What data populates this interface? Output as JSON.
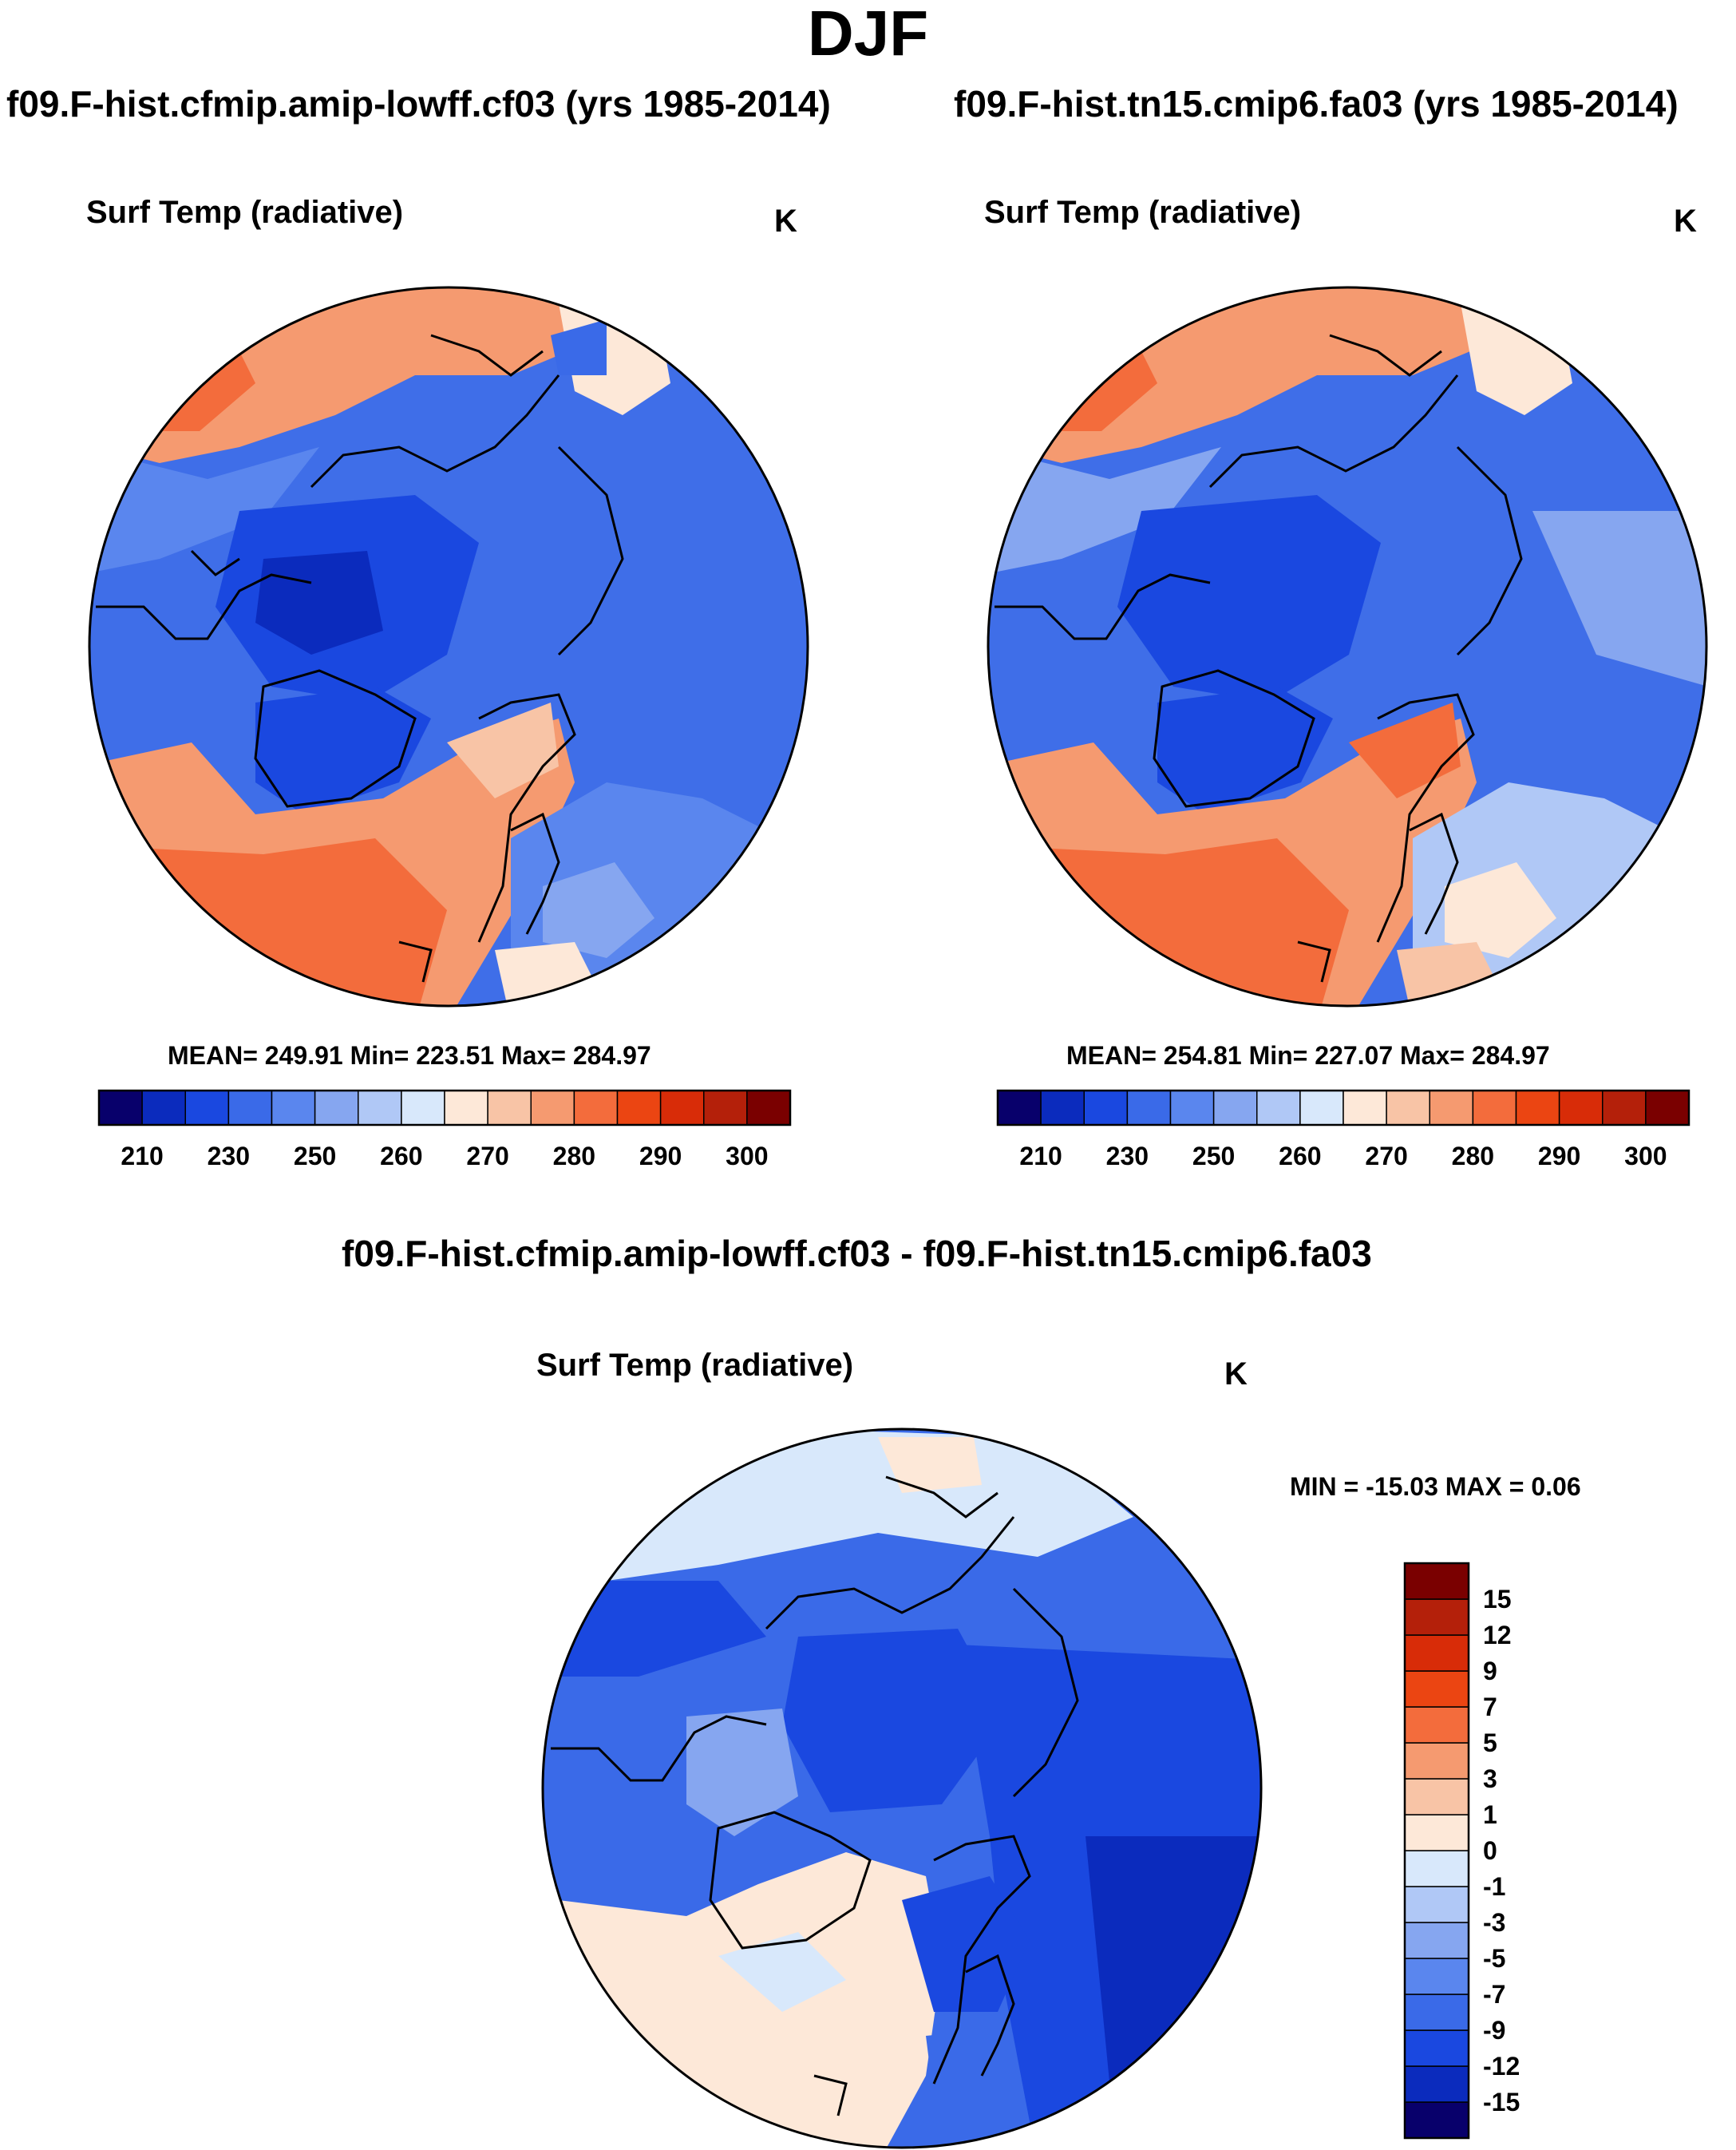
{
  "title": "DJF",
  "panels": [
    {
      "model_title": "f09.F-hist.cfmip.amip-lowff.cf03 (yrs 1985-2014)",
      "variable": "Surf Temp (radiative)",
      "units": "K",
      "stats": "MEAN= 249.91  Min= 223.51  Max= 284.97"
    },
    {
      "model_title": "f09.F-hist.tn15.cmip6.fa03 (yrs 1985-2014)",
      "variable": "Surf Temp (radiative)",
      "units": "K",
      "stats": "MEAN= 254.81  Min= 227.07  Max= 284.97"
    },
    {
      "model_title": "f09.F-hist.cfmip.amip-lowff.cf03 - f09.F-hist.tn15.cmip6.fa03",
      "variable": "Surf Temp (radiative)",
      "units": "K",
      "stats": "MIN = -15.03 MAX =   0.06"
    }
  ],
  "colorbar_abs": {
    "colors": [
      "#08006b",
      "#0b2bbd",
      "#1a48e0",
      "#3a6ae8",
      "#5a86ee",
      "#86a6f0",
      "#b0c8f6",
      "#d8e8fb",
      "#fde8d8",
      "#f8c4a6",
      "#f59a70",
      "#f36c3c",
      "#eb4512",
      "#d82c08",
      "#b4200a",
      "#7a0000"
    ],
    "labels": [
      "210",
      "230",
      "250",
      "260",
      "270",
      "280",
      "290",
      "300"
    ]
  },
  "colorbar_diff": {
    "colors": [
      "#08006b",
      "#0b2bbd",
      "#1a48e0",
      "#3a6ae8",
      "#5a86ee",
      "#86a6f0",
      "#b0c8f6",
      "#d8e8fb",
      "#fde8d8",
      "#f8c4a6",
      "#f59a70",
      "#f36c3c",
      "#eb4512",
      "#d82c08",
      "#b4200a",
      "#7a0000"
    ],
    "labels": [
      "15",
      "12",
      "9",
      "7",
      "5",
      "3",
      "1",
      "0",
      "-1",
      "-3",
      "-5",
      "-7",
      "-9",
      "-12",
      "-15"
    ]
  }
}
